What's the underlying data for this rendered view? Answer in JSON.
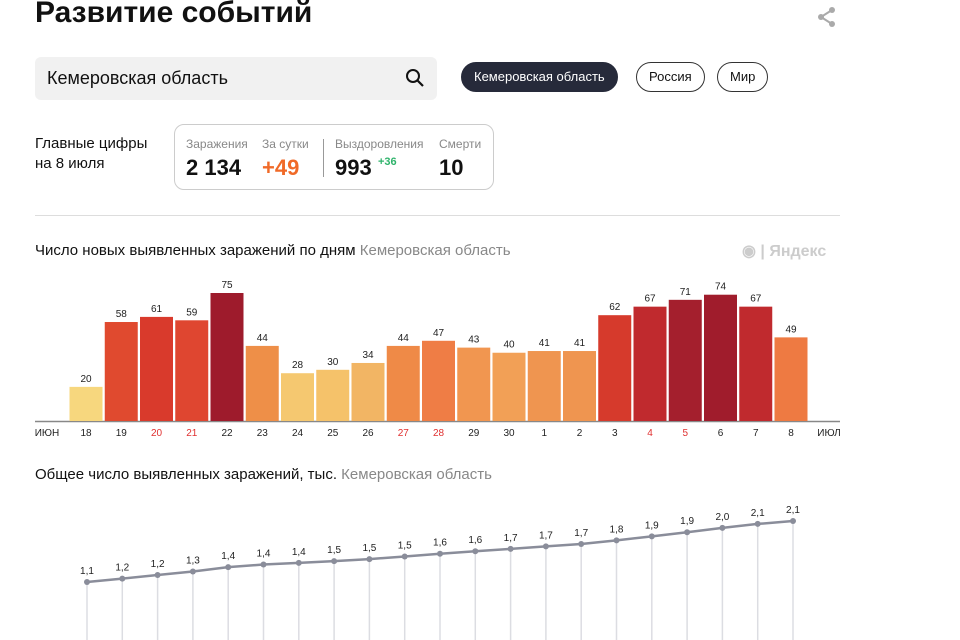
{
  "header": {
    "title": "Развитие событий",
    "share_icon": "share-icon"
  },
  "search": {
    "value": "Кемеровская область",
    "icon": "search-icon"
  },
  "regions": [
    {
      "label": "Кемеровская область",
      "active": true
    },
    {
      "label": "Россия",
      "active": false
    },
    {
      "label": "Мир",
      "active": false
    }
  ],
  "main_figures": {
    "label_line1": "Главные цифры",
    "label_line2": "на 8 июля",
    "infections_label": "Заражения",
    "infections": "2 134",
    "daily_label": "За сутки",
    "daily": "+49",
    "recovered_label": "Выздоровления",
    "recovered": "993",
    "recovered_delta": "+36",
    "deaths_label": "Смерти",
    "deaths": "10",
    "colors": {
      "daily": "#f06a28",
      "recovered_delta": "#2fb36b"
    }
  },
  "logo": "Яндекс",
  "chart_data": [
    {
      "type": "bar",
      "title": "Число новых выявленных заражений по дням",
      "subtitle": "Кемеровская область",
      "x_start_label": "июн",
      "x_end_label": "июл",
      "categories": [
        "18",
        "19",
        "20",
        "21",
        "22",
        "23",
        "24",
        "25",
        "26",
        "27",
        "28",
        "29",
        "30",
        "1",
        "2",
        "3",
        "4",
        "5",
        "6",
        "7",
        "8"
      ],
      "weekend": [
        false,
        false,
        true,
        true,
        false,
        false,
        false,
        false,
        false,
        true,
        true,
        false,
        false,
        false,
        false,
        false,
        true,
        true,
        false,
        false,
        false
      ],
      "values": [
        20,
        58,
        61,
        59,
        75,
        44,
        28,
        30,
        34,
        44,
        47,
        43,
        40,
        41,
        41,
        62,
        67,
        71,
        74,
        67,
        49
      ],
      "colors": [
        "#f7d77e",
        "#e04a2f",
        "#d93a2c",
        "#df4630",
        "#9e1b2c",
        "#ee8f48",
        "#f5c870",
        "#f5c26a",
        "#f2b564",
        "#ef8a47",
        "#ef7d45",
        "#f19650",
        "#f2a056",
        "#ef9550",
        "#ef9550",
        "#d63a2c",
        "#c02a2e",
        "#a41f2d",
        "#a01c2c",
        "#c02a2e",
        "#ee7a42"
      ],
      "ylim": [
        0,
        75
      ]
    },
    {
      "type": "line",
      "title": "Общее число выявленных заражений, тыс.",
      "subtitle": "Кемеровская область",
      "values": [
        1.099,
        1.157,
        1.218,
        1.277,
        1.352,
        1.396,
        1.424,
        1.454,
        1.488,
        1.532,
        1.579,
        1.622,
        1.662,
        1.703,
        1.744,
        1.806,
        1.873,
        1.944,
        2.018,
        2.085,
        2.134
      ],
      "labels": [
        "1,1",
        "1,2",
        "1,2",
        "1,3",
        "1,4",
        "1,4",
        "1,4",
        "1,5",
        "1,5",
        "1,5",
        "1,6",
        "1,6",
        "1,7",
        "1,7",
        "1,7",
        "1,8",
        "1,9",
        "1,9",
        "2,0",
        "2,1",
        "2,1"
      ],
      "color": "#8a8d9a"
    }
  ]
}
